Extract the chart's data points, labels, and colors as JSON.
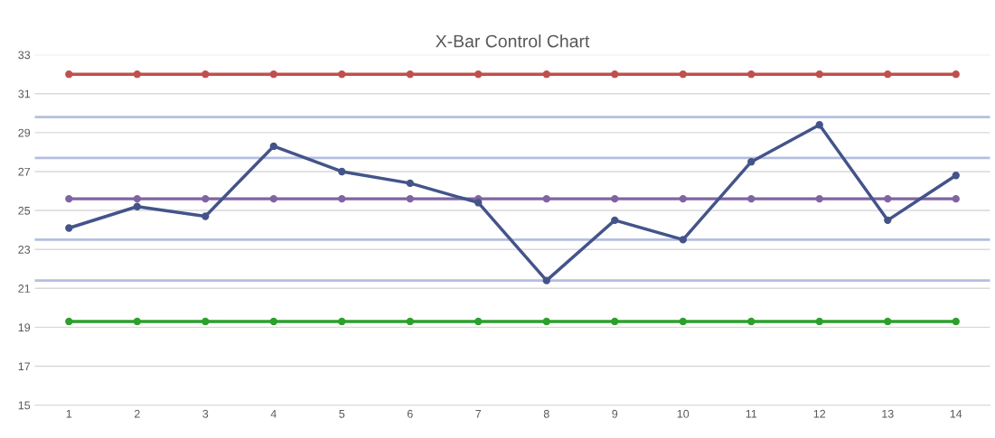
{
  "chart_data": {
    "type": "line",
    "title": "X-Bar Control Chart",
    "categories": [
      "1",
      "2",
      "3",
      "4",
      "5",
      "6",
      "7",
      "8",
      "9",
      "10",
      "11",
      "12",
      "13",
      "14"
    ],
    "series": [
      {
        "color": "#c0504d",
        "values": [
          32,
          32,
          32,
          32,
          32,
          32,
          32,
          32,
          32,
          32,
          32,
          32,
          32,
          32
        ]
      },
      {
        "color": "#8064a2",
        "values": [
          25.6,
          25.6,
          25.6,
          25.6,
          25.6,
          25.6,
          25.6,
          25.6,
          25.6,
          25.6,
          25.6,
          25.6,
          25.6,
          25.6
        ]
      },
      {
        "color": "#2ca02c",
        "values": [
          19.3,
          19.3,
          19.3,
          19.3,
          19.3,
          19.3,
          19.3,
          19.3,
          19.3,
          19.3,
          19.3,
          19.3,
          19.3,
          19.3
        ]
      },
      {
        "color": "#44548a",
        "values": [
          24.1,
          25.2,
          24.7,
          28.3,
          27.0,
          26.4,
          25.4,
          21.4,
          24.5,
          23.5,
          27.5,
          29.4,
          24.5,
          26.8
        ]
      }
    ],
    "ref_lines": [
      {
        "axis": "y",
        "value": 29.8,
        "color": "#b4bfe0"
      },
      {
        "axis": "y",
        "value": 27.7,
        "color": "#b4bfe0"
      },
      {
        "axis": "y",
        "value": 23.5,
        "color": "#b4bfe0"
      },
      {
        "axis": "y",
        "value": 21.4,
        "color": "#b4bfe0"
      }
    ],
    "ylim": [
      15,
      33
    ],
    "yticks": [
      15,
      17,
      19,
      21,
      23,
      25,
      27,
      29,
      31,
      33
    ],
    "grid": "y",
    "marker": "circle",
    "line_style": "solid",
    "legend": false
  }
}
